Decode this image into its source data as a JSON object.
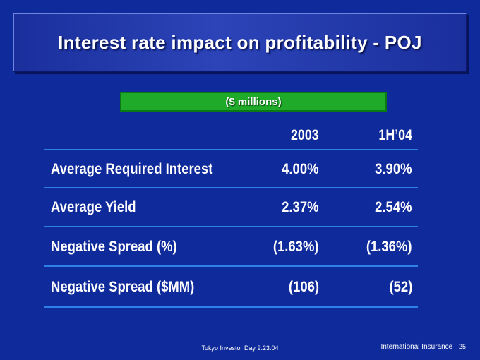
{
  "title": "Interest rate impact on profitability - POJ",
  "units": "($ millions)",
  "columns": [
    "2003",
    "1H’04"
  ],
  "rows": [
    {
      "label": "Average Required Interest",
      "values": [
        "4.00%",
        "3.90%"
      ]
    },
    {
      "label": "Average Yield",
      "values": [
        "2.37%",
        "2.54%"
      ]
    },
    {
      "label": "Negative Spread (%)",
      "values": [
        "(1.63%)",
        "(1.36%)"
      ]
    },
    {
      "label": "Negative Spread ($MM)",
      "values": [
        "(106)",
        "(52)"
      ]
    }
  ],
  "footer": {
    "event": "Tokyo Investor Day 9.23.04",
    "division": "International Insurance",
    "page": "25"
  },
  "colors": {
    "background": "#0f2a9a",
    "units_bar": "#1faa2a",
    "rule_lines": "#2f7fe8"
  }
}
